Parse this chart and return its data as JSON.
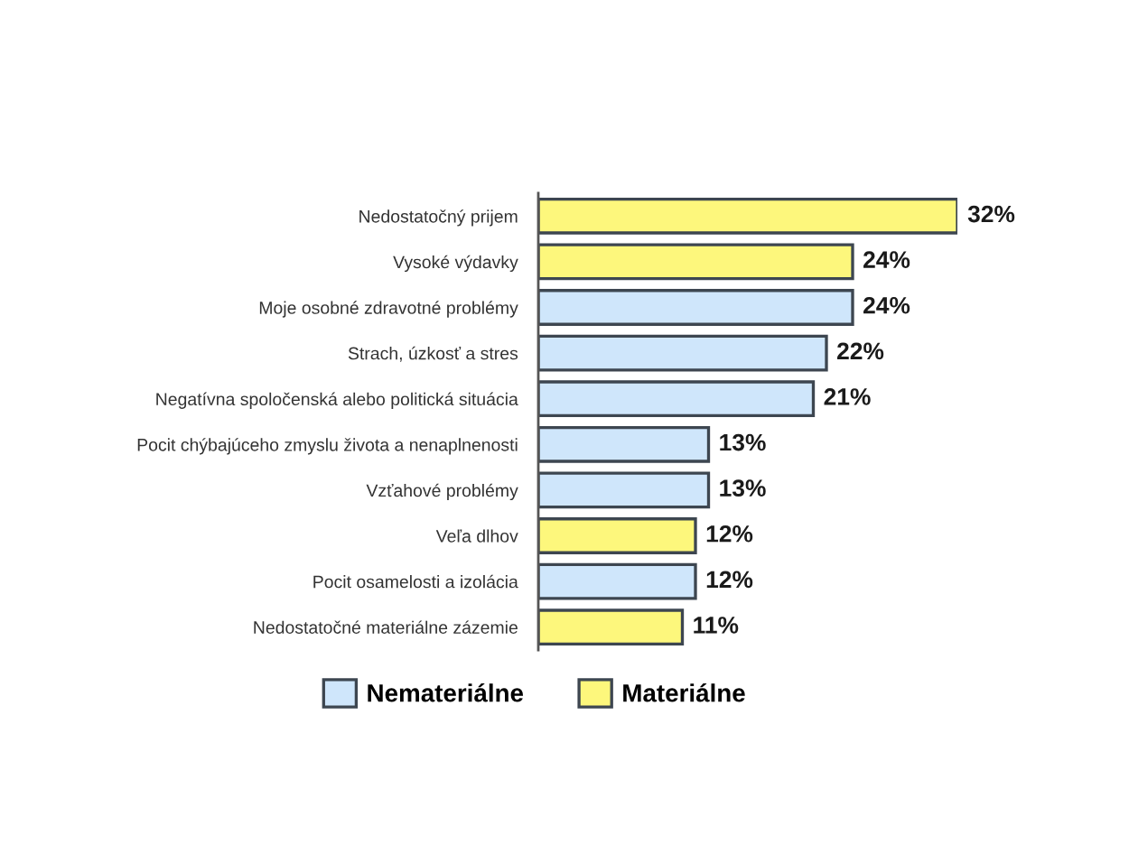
{
  "chart_data": {
    "type": "bar",
    "orientation": "horizontal",
    "categories": [
      "Nedostatočný prijem",
      "Vysoké výdavky",
      "Moje osobné zdravotné problémy",
      "Strach, úzkosť a stres",
      "Negatívna spoločenská alebo politická situácia",
      "Pocit chýbajúceho zmyslu života a nenaplnenosti",
      "Vzťahové problémy",
      "Veľa dlhov",
      "Pocit osamelosti a izolácia",
      "Nedostatočné materiálne zázemie"
    ],
    "series": [
      {
        "name": "Nemateriálne",
        "color": "#cfe6fb",
        "values": [
          null,
          null,
          24,
          22,
          21,
          13,
          13,
          null,
          12,
          null
        ],
        "value_labels": [
          null,
          null,
          "24%",
          "22%",
          "21%",
          "13%",
          "13%",
          null,
          "12%",
          null
        ]
      },
      {
        "name": "Materiálne",
        "color": "#fdf77c",
        "values": [
          32,
          24,
          null,
          null,
          null,
          null,
          null,
          12,
          null,
          11
        ],
        "value_labels": [
          "32%",
          "24%",
          null,
          null,
          null,
          null,
          null,
          "12%",
          null,
          "11%"
        ]
      }
    ],
    "tick_labels": "y",
    "grid": false,
    "legend": "bottom"
  }
}
